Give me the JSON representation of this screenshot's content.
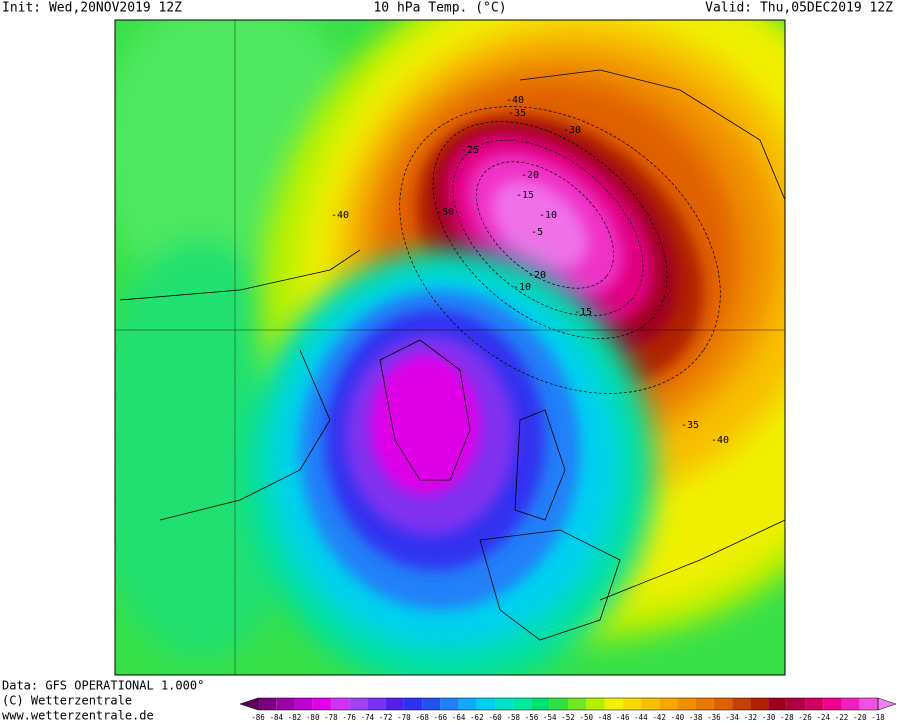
{
  "header": {
    "init": "Init: Wed,20NOV2019 12Z",
    "title": "10 hPa Temp. (°C)",
    "valid": "Valid: Thu,05DEC2019 12Z"
  },
  "footer": {
    "lines": [
      "Data: GFS OPERATIONAL 1.000°",
      "(C) Wetterzentrale",
      "www.wetterzentrale.de"
    ]
  },
  "colorbar": {
    "labels": [
      -86,
      -84,
      -82,
      -80,
      -78,
      -76,
      -74,
      -72,
      -70,
      -68,
      -66,
      -64,
      -62,
      -60,
      -58,
      -56,
      -54,
      -52,
      -50,
      -48,
      -46,
      -44,
      -42,
      -40,
      -38,
      -36,
      -34,
      -32,
      -30,
      -28,
      -26,
      -24,
      -22,
      -20,
      -18
    ],
    "colors": [
      "#5a005a",
      "#7a0080",
      "#9a00a8",
      "#c000d0",
      "#e000e8",
      "#d030f0",
      "#a040f0",
      "#7a30f0",
      "#5020e8",
      "#3030f0",
      "#2050f0",
      "#2080f8",
      "#10a8f8",
      "#00d0f0",
      "#00e0c8",
      "#00e8a0",
      "#00e070",
      "#30e040",
      "#70e820",
      "#b0f000",
      "#f0f000",
      "#f8d800",
      "#f8c000",
      "#f8a800",
      "#f09000",
      "#e87800",
      "#e06000",
      "#c84000",
      "#b02000",
      "#a00020",
      "#b00040",
      "#d00060",
      "#f00090",
      "#f020c0",
      "#f050e0",
      "#f080f0"
    ]
  },
  "map": {
    "contour_labels": [
      -40,
      -35,
      -30,
      -25,
      -20,
      -15,
      -10,
      -5,
      -50,
      -40,
      -20,
      -10,
      -15,
      -35,
      -40
    ]
  }
}
